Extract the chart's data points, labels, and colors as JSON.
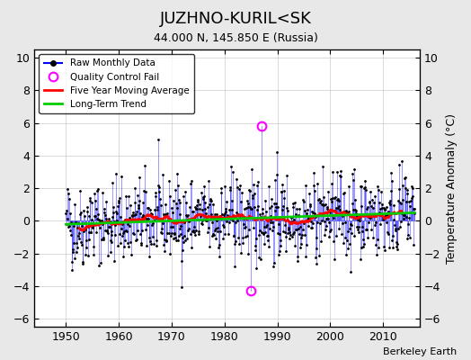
{
  "title": "JUZHNO-KURIL<SK",
  "subtitle": "44.000 N, 145.850 E (Russia)",
  "ylabel": "Temperature Anomaly (°C)",
  "credit": "Berkeley Earth",
  "ylim": [
    -6.5,
    10.5
  ],
  "xlim": [
    1944,
    2017
  ],
  "yticks": [
    -6,
    -4,
    -2,
    0,
    2,
    4,
    6,
    8,
    10
  ],
  "xticks": [
    1950,
    1960,
    1970,
    1980,
    1990,
    2000,
    2010
  ],
  "raw_color": "#0000FF",
  "dot_color": "#000000",
  "ma_color": "#FF0000",
  "trend_color": "#00CC00",
  "qc_color": "#FF00FF",
  "bg_color": "#E8E8E8",
  "plot_bg": "#FFFFFF",
  "seed": 42,
  "n_months": 792,
  "start_year": 1950,
  "qc_fail_indices": [
    420,
    444
  ],
  "qc_fail_values": [
    -4.3,
    5.8
  ]
}
